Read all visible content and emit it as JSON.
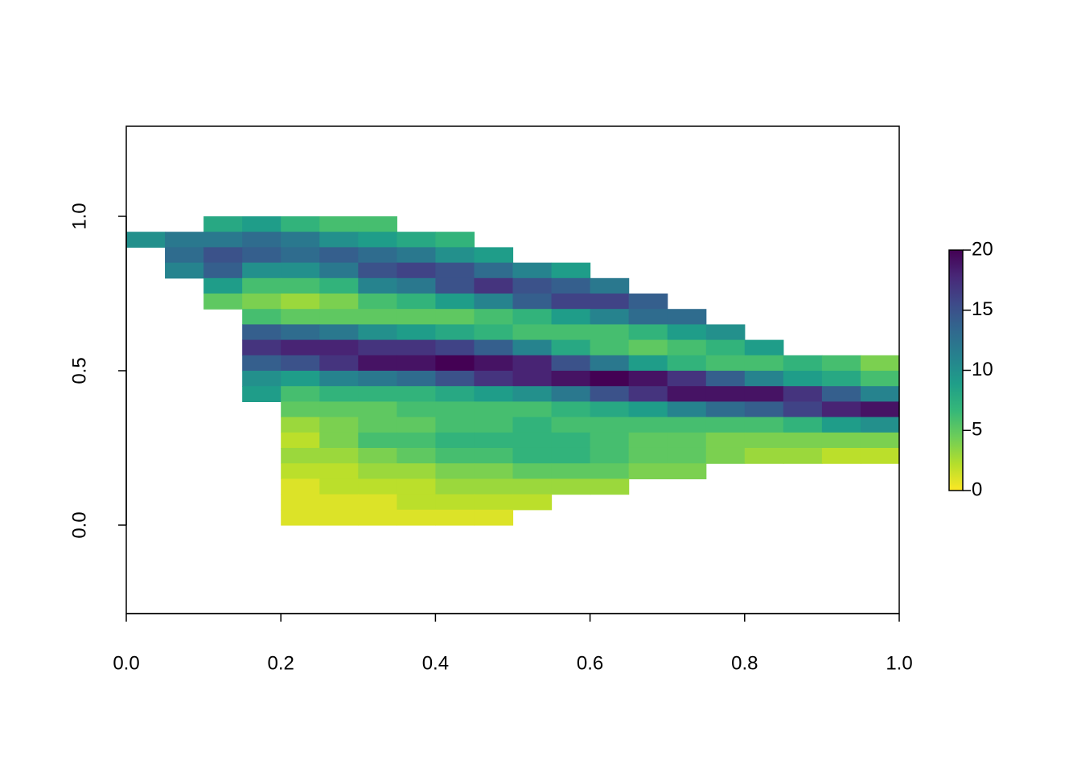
{
  "chart_data": {
    "type": "heatmap",
    "x": [
      0.025,
      0.075,
      0.125,
      0.175,
      0.225,
      0.275,
      0.325,
      0.375,
      0.425,
      0.475,
      0.525,
      0.575,
      0.625,
      0.675,
      0.725,
      0.775,
      0.825,
      0.875,
      0.925,
      0.975
    ],
    "y": [
      0.975,
      0.925,
      0.875,
      0.825,
      0.775,
      0.725,
      0.675,
      0.625,
      0.575,
      0.525,
      0.475,
      0.425,
      0.375,
      0.325,
      0.275,
      0.225,
      0.175,
      0.125,
      0.075,
      0.025
    ],
    "z": [
      [
        null,
        null,
        8,
        9,
        7,
        6,
        6,
        null,
        null,
        null,
        null,
        null,
        null,
        null,
        null,
        null,
        null,
        null,
        null,
        null
      ],
      [
        10,
        12,
        12,
        13,
        12,
        10,
        9,
        8,
        7,
        null,
        null,
        null,
        null,
        null,
        null,
        null,
        null,
        null,
        null,
        null
      ],
      [
        null,
        13,
        15,
        14,
        13,
        14,
        13,
        12,
        10,
        9,
        null,
        null,
        null,
        null,
        null,
        null,
        null,
        null,
        null,
        null
      ],
      [
        null,
        11,
        14,
        10,
        10,
        12,
        15,
        16,
        15,
        13,
        11,
        9,
        null,
        null,
        null,
        null,
        null,
        null,
        null,
        null
      ],
      [
        null,
        null,
        9,
        6,
        6,
        7,
        11,
        12,
        15,
        17,
        15,
        14,
        12,
        null,
        null,
        null,
        null,
        null,
        null,
        null
      ],
      [
        null,
        null,
        5,
        4,
        3,
        4,
        6,
        7,
        9,
        11,
        14,
        16,
        16,
        14,
        null,
        null,
        null,
        null,
        null,
        null
      ],
      [
        null,
        null,
        null,
        6,
        5,
        5,
        5,
        5,
        5,
        6,
        7,
        9,
        11,
        13,
        13,
        null,
        null,
        null,
        null,
        null
      ],
      [
        null,
        null,
        null,
        14,
        13,
        12,
        10,
        9,
        8,
        7,
        6,
        6,
        6,
        7,
        9,
        10,
        null,
        null,
        null,
        null
      ],
      [
        null,
        null,
        null,
        17,
        18,
        18,
        17,
        17,
        16,
        14,
        11,
        8,
        6,
        5,
        6,
        7,
        9,
        null,
        null,
        null
      ],
      [
        null,
        null,
        null,
        14,
        15,
        17,
        19,
        19,
        20,
        19,
        18,
        15,
        12,
        9,
        7,
        6,
        6,
        7,
        6,
        4
      ],
      [
        null,
        null,
        null,
        10,
        9,
        11,
        12,
        13,
        15,
        17,
        18,
        19,
        20,
        19,
        17,
        14,
        11,
        9,
        8,
        6
      ],
      [
        null,
        null,
        null,
        9,
        6,
        7,
        7,
        7,
        8,
        9,
        10,
        12,
        15,
        17,
        19,
        19,
        19,
        17,
        14,
        11
      ],
      [
        null,
        null,
        null,
        null,
        5,
        5,
        5,
        6,
        6,
        6,
        6,
        7,
        8,
        9,
        11,
        13,
        14,
        16,
        18,
        19
      ],
      [
        null,
        null,
        null,
        null,
        3,
        4,
        5,
        5,
        6,
        6,
        7,
        6,
        6,
        6,
        6,
        6,
        6,
        7,
        9,
        10
      ],
      [
        null,
        null,
        null,
        null,
        2,
        4,
        6,
        6,
        7,
        7,
        7,
        7,
        6,
        5,
        5,
        4,
        4,
        4,
        4,
        4
      ],
      [
        null,
        null,
        null,
        null,
        3,
        3,
        4,
        5,
        6,
        6,
        7,
        7,
        6,
        5,
        5,
        4,
        3,
        3,
        2,
        2
      ],
      [
        null,
        null,
        null,
        null,
        2,
        2,
        3,
        3,
        4,
        4,
        5,
        5,
        5,
        4,
        4,
        null,
        null,
        null,
        null,
        null
      ],
      [
        null,
        null,
        null,
        null,
        1,
        2,
        2,
        2,
        3,
        3,
        3,
        3,
        3,
        null,
        null,
        null,
        null,
        null,
        null,
        null
      ],
      [
        null,
        null,
        null,
        null,
        1,
        1,
        1,
        2,
        2,
        2,
        2,
        null,
        null,
        null,
        null,
        null,
        null,
        null,
        null,
        null
      ],
      [
        null,
        null,
        null,
        null,
        1,
        1,
        1,
        1,
        1,
        1,
        null,
        null,
        null,
        null,
        null,
        null,
        null,
        null,
        null,
        null
      ]
    ],
    "xlim": [
      0,
      1
    ],
    "ylim": [
      -0.2865,
      1.2917
    ],
    "xticks": [
      {
        "value": 0,
        "label": "0.0"
      },
      0.2,
      0.4,
      0.6,
      0.8,
      {
        "value": 1,
        "label": "1.0"
      }
    ],
    "yticks": [
      {
        "value": 0,
        "label": "0.0"
      },
      0.5,
      {
        "value": 1,
        "label": "1.0"
      }
    ],
    "zlim": [
      0,
      20
    ],
    "zticks": [
      0,
      5,
      10,
      15,
      20
    ],
    "colors": [
      "#FDE725",
      "#B4DE2C",
      "#6DCD59",
      "#35B779",
      "#1F9E89",
      "#26828E",
      "#31688E",
      "#3E4A89",
      "#482878",
      "#440154"
    ]
  }
}
